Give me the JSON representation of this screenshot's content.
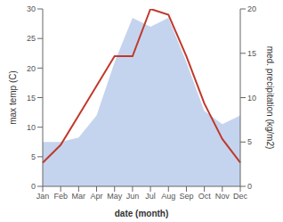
{
  "chart_data": {
    "type": "line",
    "categories": [
      "Jan",
      "Feb",
      "Mar",
      "Apr",
      "May",
      "Jun",
      "Jul",
      "Aug",
      "Sep",
      "Oct",
      "Nov",
      "Dec"
    ],
    "series": [
      {
        "type": "area",
        "color": "#c5d4ee",
        "axis": "y2",
        "values": [
          5,
          5,
          5.5,
          8,
          14,
          19,
          18,
          19,
          14,
          8.5,
          7,
          8
        ]
      },
      {
        "type": "line",
        "color": "#c0392b",
        "values": [
          4,
          7,
          12,
          17,
          22,
          22,
          30,
          29,
          22,
          14,
          8,
          4
        ]
      }
    ],
    "xlabel": "date (month)",
    "ylabel": "max temp (C)",
    "y2label": "med. precipitation (kg/m2)",
    "ylim": [
      0,
      30
    ],
    "yticks": [
      0,
      5,
      10,
      15,
      20,
      25,
      30
    ],
    "y2lim": [
      0,
      20
    ],
    "y2ticks": [
      0,
      5,
      10,
      15,
      20
    ],
    "grid": false
  }
}
